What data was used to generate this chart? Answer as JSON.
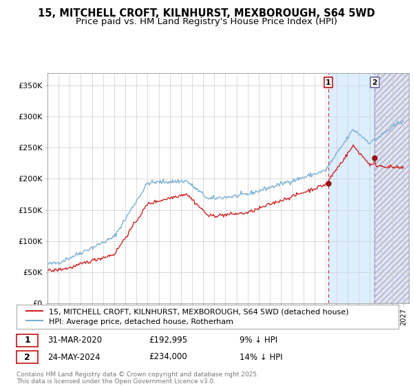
{
  "title": "15, MITCHELL CROFT, KILNHURST, MEXBOROUGH, S64 5WD",
  "subtitle": "Price paid vs. HM Land Registry's House Price Index (HPI)",
  "ylim": [
    0,
    370000
  ],
  "xlim_start": 1995.0,
  "xlim_end": 2027.5,
  "yticks": [
    0,
    50000,
    100000,
    150000,
    200000,
    250000,
    300000,
    350000
  ],
  "ytick_labels": [
    "£0",
    "£50K",
    "£100K",
    "£150K",
    "£200K",
    "£250K",
    "£300K",
    "£350K"
  ],
  "hpi_color": "#7bafd4",
  "price_color": "#cc2222",
  "shade_color": "#ddeeff",
  "marker_color": "#991111",
  "vline1_color": "#cc4444",
  "vline2_color": "#9999bb",
  "annotation_box_color": "#cc2222",
  "annotation_box2_color": "#7777aa",
  "point1_x": 2020.25,
  "point1_y": 192995,
  "point1_label": "1",
  "point1_date": "31-MAR-2020",
  "point1_price": "£192,995",
  "point1_note": "9% ↓ HPI",
  "point2_x": 2024.42,
  "point2_y": 234000,
  "point2_label": "2",
  "point2_date": "24-MAY-2024",
  "point2_price": "£234,000",
  "point2_note": "14% ↓ HPI",
  "legend_line1": "15, MITCHELL CROFT, KILNHURST, MEXBOROUGH, S64 5WD (detached house)",
  "legend_line2": "HPI: Average price, detached house, Rotherham",
  "footer": "Contains HM Land Registry data © Crown copyright and database right 2025.\nThis data is licensed under the Open Government Licence v3.0.",
  "title_fontsize": 10.5,
  "subtitle_fontsize": 9.5,
  "tick_fontsize": 8,
  "legend_fontsize": 8,
  "footer_fontsize": 6.5
}
